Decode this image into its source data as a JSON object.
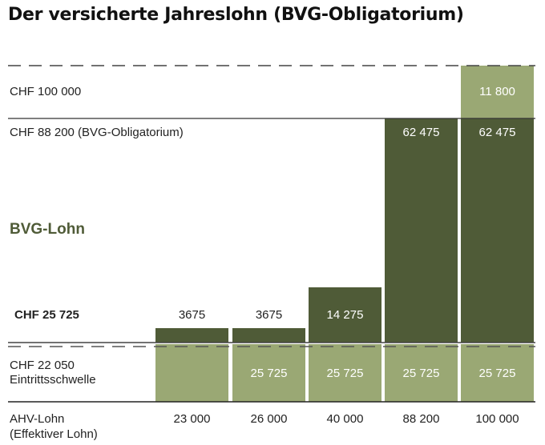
{
  "chart_data": {
    "type": "bar",
    "stacked": true,
    "title": "Der versicherte Jahreslohn (BVG-Obligatorium)",
    "categories": [
      "23 000",
      "26 000",
      "40 000",
      "88 200",
      "100 000"
    ],
    "category_label": [
      "AHV-Lohn",
      "(Effektiver Lohn)"
    ],
    "series": [
      {
        "values": [
          23000,
          25725,
          25725,
          25725,
          25725
        ],
        "labels": [
          "",
          "25 725",
          "25 725",
          "25 725",
          "25 725"
        ],
        "color": "#9aa874"
      },
      {
        "values": [
          3675,
          3675,
          14275,
          62475,
          62475
        ],
        "labels": [
          "3675",
          "3675",
          "14 275",
          "62 475",
          "62 475"
        ],
        "color": "#4f5b37"
      },
      {
        "values": [
          0,
          0,
          0,
          0,
          11800
        ],
        "labels": [
          "",
          "",
          "",
          "",
          "11 800"
        ],
        "color": "#9aa874"
      }
    ],
    "reference_lines": [
      {
        "label": "CHF 100 000",
        "style": "dashed"
      },
      {
        "label": "CHF 88 200 (BVG-Obligatorium)",
        "style": "solid"
      },
      {
        "label": "CHF 25 725",
        "style": "solid",
        "bold": true
      },
      {
        "label": [
          "CHF 22 050",
          "Eintrittsschwelle"
        ],
        "style": "dashed"
      }
    ],
    "annotation": "BVG-Lohn",
    "colors": {
      "dark": "#4f5b37",
      "light": "#9aa874",
      "annotation": "#4f5b37"
    }
  }
}
